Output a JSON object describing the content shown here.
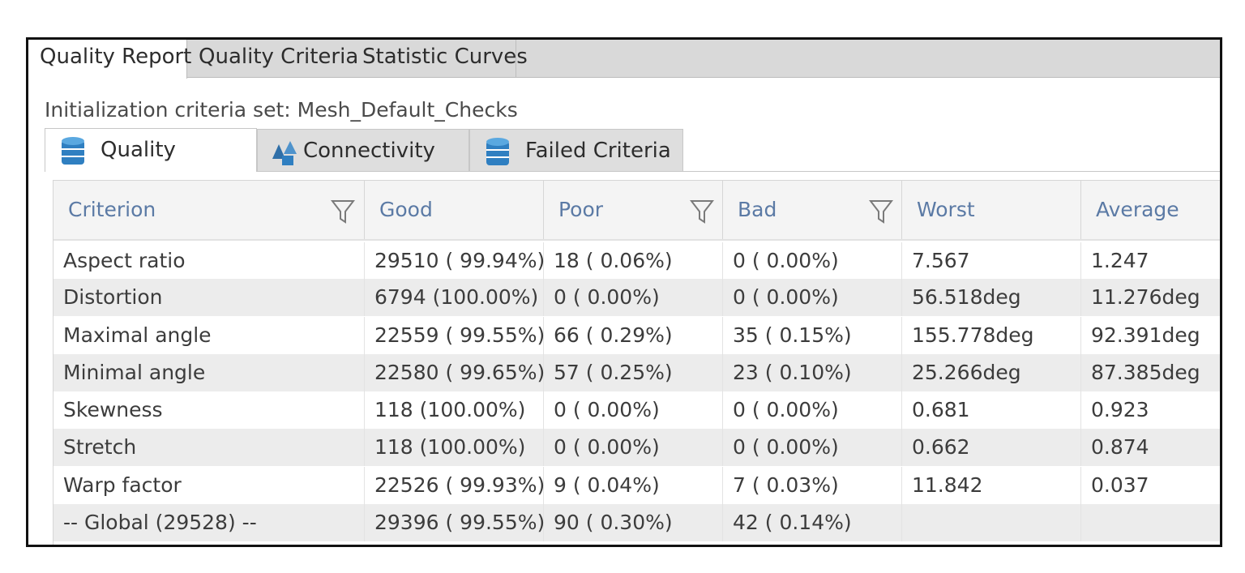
{
  "top_tabs": [
    {
      "label": "Quality Report",
      "active": true
    },
    {
      "label": "Quality Criteria",
      "active": false
    },
    {
      "label": "Statistic Curves",
      "active": false
    }
  ],
  "criteria_set_label": "Initialization criteria set: Mesh_Default_Checks",
  "sub_tabs": [
    {
      "label": "Quality",
      "icon": "database-icon",
      "active": true
    },
    {
      "label": "Connectivity",
      "icon": "shapes-icon",
      "active": false
    },
    {
      "label": "Failed Criteria",
      "icon": "database-icon",
      "active": false
    }
  ],
  "table": {
    "columns": [
      "Criterion",
      "Good",
      "Poor",
      "Bad",
      "Worst",
      "Average"
    ],
    "rows": [
      [
        "Aspect ratio",
        "29510 ( 99.94%)",
        "18 (  0.06%)",
        "0 (  0.00%)",
        "7.567",
        "1.247"
      ],
      [
        "Distortion",
        "6794 (100.00%)",
        "0 (  0.00%)",
        "0 (  0.00%)",
        "56.518deg",
        "11.276deg"
      ],
      [
        "Maximal angle",
        "22559 ( 99.55%)",
        "66 (  0.29%)",
        "35 (  0.15%)",
        "155.778deg",
        "92.391deg"
      ],
      [
        "Minimal angle",
        "22580 ( 99.65%)",
        "57 (  0.25%)",
        "23 (  0.10%)",
        "25.266deg",
        "87.385deg"
      ],
      [
        "Skewness",
        "118 (100.00%)",
        "0 (  0.00%)",
        "0 (  0.00%)",
        "0.681",
        "0.923"
      ],
      [
        "Stretch",
        "118 (100.00%)",
        "0 (  0.00%)",
        "0 (  0.00%)",
        "0.662",
        "0.874"
      ],
      [
        "Warp factor",
        "22526 ( 99.93%)",
        "9 (  0.04%)",
        "7 (  0.03%)",
        "11.842",
        "0.037"
      ],
      [
        "-- Global (29528) --",
        "29396 ( 99.55%)",
        "90 (  0.30%)",
        "42 (  0.14%)",
        "",
        ""
      ]
    ]
  },
  "colors": {
    "header_text": "#5b7aa5",
    "icon_blue": "#2f7fc1",
    "alt_row": "#ececec"
  }
}
